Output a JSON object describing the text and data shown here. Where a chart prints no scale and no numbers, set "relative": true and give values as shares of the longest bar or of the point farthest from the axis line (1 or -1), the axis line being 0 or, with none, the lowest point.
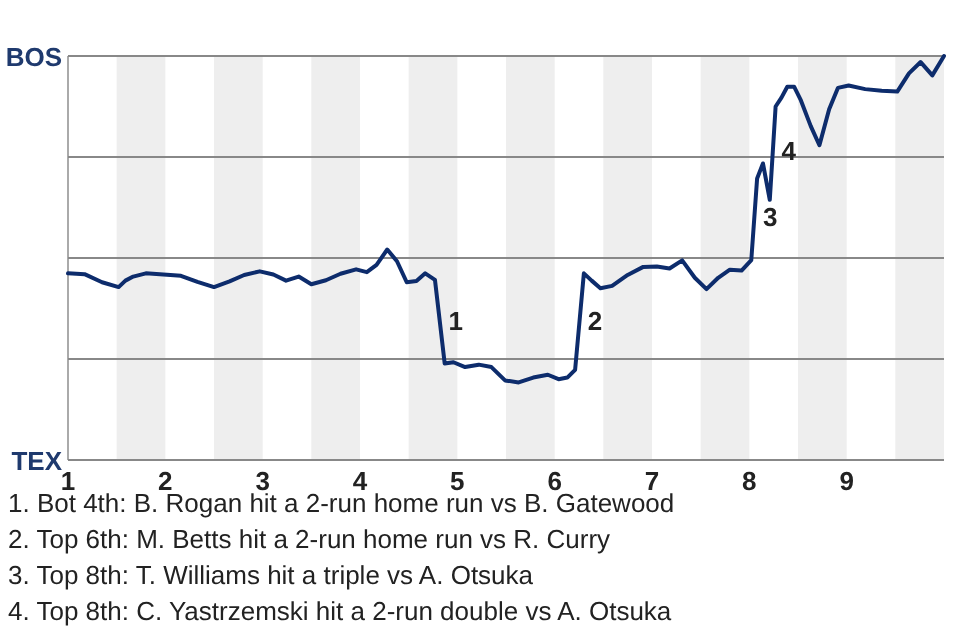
{
  "chart_data": {
    "type": "line",
    "relative": true,
    "x": [
      1,
      1.17,
      1.35,
      1.52,
      1.59,
      1.67,
      1.8,
      2.16,
      2.33,
      2.5,
      2.66,
      2.81,
      2.97,
      3.11,
      3.24,
      3.37,
      3.5,
      3.65,
      3.8,
      3.96,
      4.07,
      4.17,
      4.28,
      4.38,
      4.48,
      4.58,
      4.67,
      4.77,
      4.87,
      4.96,
      5.08,
      5.22,
      5.35,
      5.49,
      5.63,
      5.78,
      5.93,
      6.04,
      6.13,
      6.21,
      6.3,
      6.38,
      6.47,
      6.59,
      6.75,
      6.91,
      7.05,
      7.18,
      7.31,
      7.44,
      7.56,
      7.68,
      7.8,
      7.92,
      8.02,
      8.08,
      8.14,
      8.21,
      8.27,
      8.33,
      8.39,
      8.46,
      8.53,
      8.63,
      8.72,
      8.82,
      8.91,
      9.02,
      9.19,
      9.36,
      9.52,
      9.64,
      9.76,
      9.88,
      10
    ],
    "xlim": [
      1,
      10
    ],
    "xticks": [
      1,
      2,
      3,
      4,
      5,
      6,
      7,
      8,
      9
    ],
    "series": [
      {
        "color": "#0d2c6c",
        "values": [
          0.462,
          0.46,
          0.44,
          0.428,
          0.444,
          0.454,
          0.462,
          0.456,
          0.441,
          0.428,
          0.442,
          0.458,
          0.467,
          0.459,
          0.444,
          0.454,
          0.435,
          0.445,
          0.461,
          0.472,
          0.465,
          0.483,
          0.521,
          0.492,
          0.44,
          0.443,
          0.462,
          0.446,
          0.239,
          0.242,
          0.23,
          0.236,
          0.23,
          0.197,
          0.192,
          0.204,
          0.211,
          0.2,
          0.204,
          0.223,
          0.462,
          0.444,
          0.425,
          0.431,
          0.458,
          0.478,
          0.479,
          0.474,
          0.494,
          0.451,
          0.423,
          0.451,
          0.471,
          0.469,
          0.495,
          0.697,
          0.734,
          0.644,
          0.875,
          0.897,
          0.924,
          0.924,
          0.89,
          0.827,
          0.779,
          0.868,
          0.921,
          0.927,
          0.918,
          0.914,
          0.912,
          0.957,
          0.985,
          0.952,
          1
        ]
      }
    ],
    "marker": "none",
    "line_style": "solid",
    "ref_lines": [
      {
        "axis": "y",
        "value": 1,
        "label": "BOS",
        "color": "#888888"
      },
      {
        "axis": "y",
        "value": 0.75,
        "color": "#888888"
      },
      {
        "axis": "y",
        "value": 0.5,
        "color": "#888888"
      },
      {
        "axis": "y",
        "value": 0.25,
        "color": "#888888"
      },
      {
        "axis": "y",
        "value": 0,
        "label": "TEX",
        "color": "#888888"
      }
    ],
    "bands": [
      {
        "axis": "x",
        "from": 1.5,
        "to": 2,
        "color": "#eeeeee"
      },
      {
        "axis": "x",
        "from": 2.5,
        "to": 3,
        "color": "#eeeeee"
      },
      {
        "axis": "x",
        "from": 3.5,
        "to": 4,
        "color": "#eeeeee"
      },
      {
        "axis": "x",
        "from": 4.5,
        "to": 5,
        "color": "#eeeeee"
      },
      {
        "axis": "x",
        "from": 5.5,
        "to": 6,
        "color": "#eeeeee"
      },
      {
        "axis": "x",
        "from": 6.5,
        "to": 7,
        "color": "#eeeeee"
      },
      {
        "axis": "x",
        "from": 7.5,
        "to": 8,
        "color": "#eeeeee"
      },
      {
        "axis": "x",
        "from": 8.5,
        "to": 9,
        "color": "#eeeeee"
      },
      {
        "axis": "x",
        "from": 9.5,
        "to": 10,
        "color": "#eeeeee"
      }
    ],
    "annotations": [
      {
        "text": "1",
        "x": 4.82,
        "y": 0.34
      },
      {
        "text": "2",
        "x": 6.25,
        "y": 0.34
      },
      {
        "text": "3",
        "x": 8.05,
        "y": 0.596
      },
      {
        "text": "4",
        "x": 8.24,
        "y": 0.76
      },
      "1. Bot 4th: B. Rogan hit a 2-run home run vs B. Gatewood",
      "2. Top 6th: M. Betts hit a 2-run home run vs R. Curry",
      "3. Top 8th: T. Williams hit a triple vs A. Otsuka",
      "4. Top 8th: C. Yastrzemski hit a 2-run double vs A. Otsuka"
    ]
  }
}
